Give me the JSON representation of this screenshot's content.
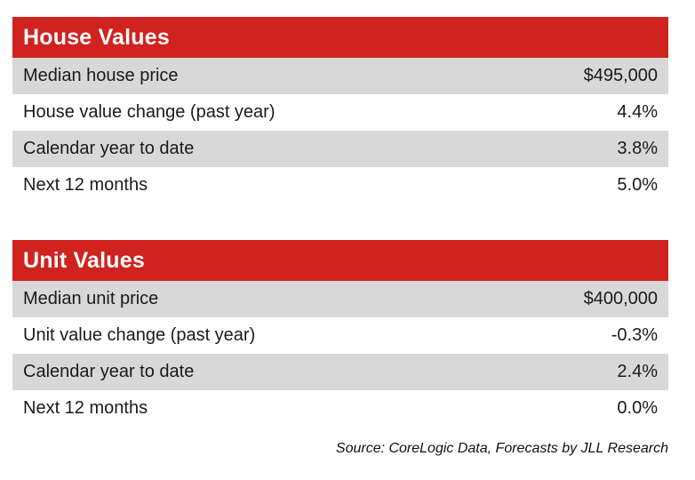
{
  "house_values": {
    "title": "House Values",
    "rows": [
      {
        "label": "Median house price",
        "value": "$495,000"
      },
      {
        "label": "House value change (past year)",
        "value": "4.4%"
      },
      {
        "label": "Calendar year to date",
        "value": "3.8%"
      },
      {
        "label": "Next 12 months",
        "value": "5.0%"
      }
    ]
  },
  "unit_values": {
    "title": "Unit Values",
    "rows": [
      {
        "label": "Median unit price",
        "value": "$400,000"
      },
      {
        "label": "Unit value change (past year)",
        "value": "-0.3%"
      },
      {
        "label": "Calendar year to date",
        "value": "2.4%"
      },
      {
        "label": "Next 12 months",
        "value": "0.0%"
      }
    ]
  },
  "source": "Source: CoreLogic Data, Forecasts by JLL Research",
  "colors": {
    "header_red": "#d0221f",
    "row_shade": "#d8d8d8"
  }
}
